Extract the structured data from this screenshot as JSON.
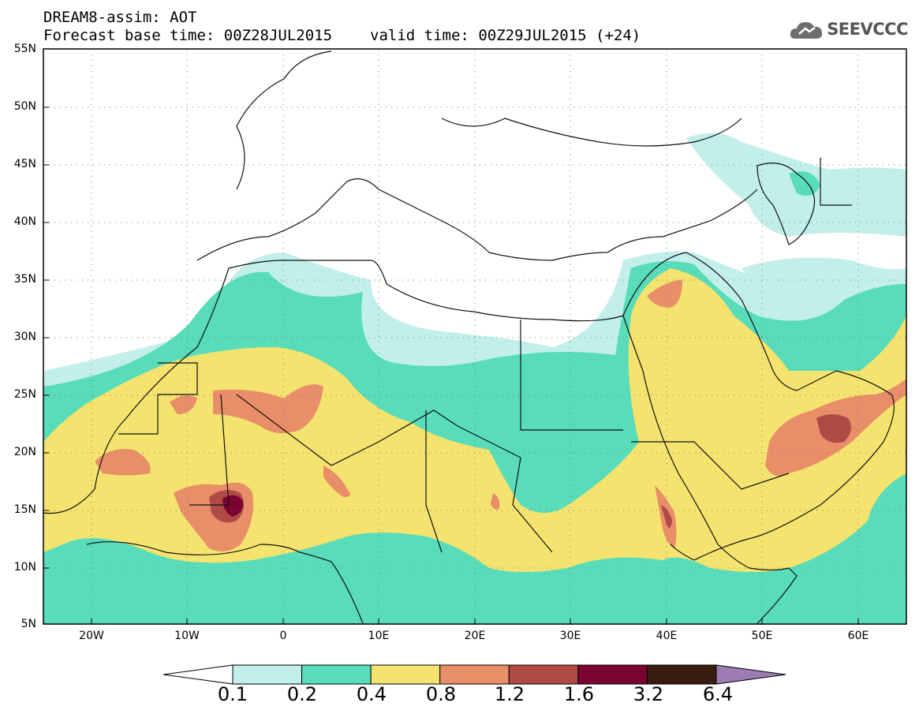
{
  "header": {
    "model_line": "DREAM8-assim: AOT",
    "base_time": "Forecast base time: 00Z28JUL2015",
    "valid_time": "valid time: 00Z29JUL2015 (+24)"
  },
  "logo": {
    "text": "SEEVCCC",
    "icon": "cloud-icon"
  },
  "map": {
    "lon_range": [
      -25,
      65
    ],
    "lat_range": [
      5,
      55
    ],
    "lat_labels": [
      "55N",
      "50N",
      "45N",
      "40N",
      "35N",
      "30N",
      "25N",
      "20N",
      "15N",
      "10N",
      "5N"
    ],
    "lon_labels": [
      "20W",
      "10W",
      "0",
      "10E",
      "20E",
      "30E",
      "40E",
      "50E",
      "60E"
    ]
  },
  "colorbar": {
    "colors": [
      "#ffffff",
      "#c2efe9",
      "#58dcba",
      "#f5e36f",
      "#e88e68",
      "#b04a45",
      "#7a0331",
      "#3a1b10",
      "#9c7cb2"
    ],
    "labels": [
      "0.1",
      "0.2",
      "0.4",
      "0.8",
      "1.2",
      "1.6",
      "3.2",
      "6.4"
    ]
  }
}
